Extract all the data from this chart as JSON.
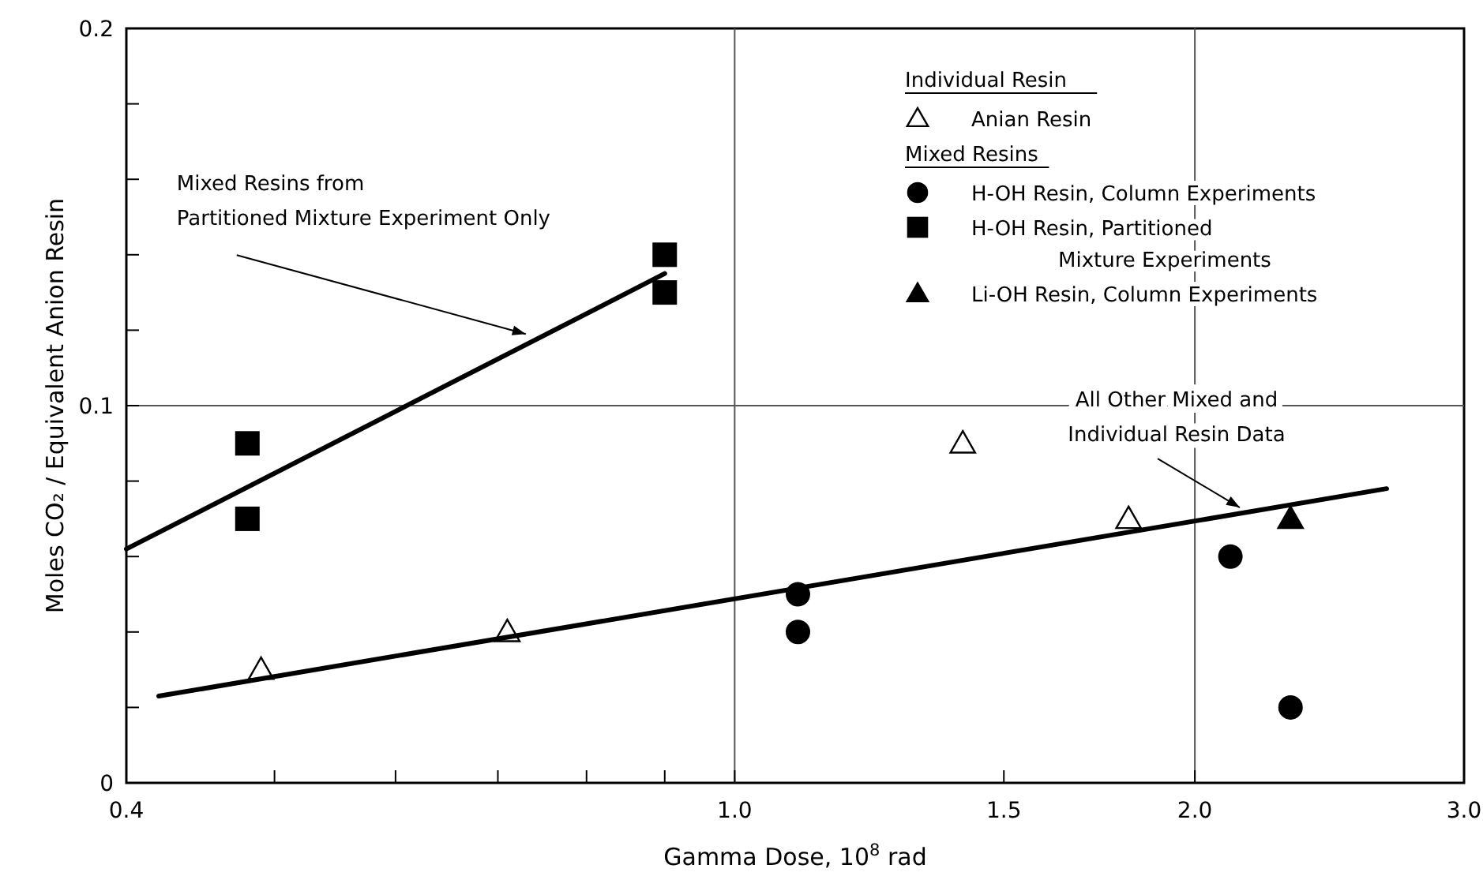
{
  "chart_data": {
    "type": "scatter",
    "xlabel": "Gamma Dose, 10$^{8}$ rad",
    "ylabel": "Moles CO₂ / Equivalent Anion Resin",
    "log": "x",
    "xlim": [
      0.4,
      3.0
    ],
    "xticks": [
      0.4,
      {
        "value": 0.5,
        "label": null
      },
      {
        "value": 0.6,
        "label": null
      },
      {
        "value": 0.7,
        "label": null
      },
      {
        "value": 0.8,
        "label": null
      },
      {
        "value": 0.9,
        "label": null
      },
      {
        "value": 1,
        "label": "1.0"
      },
      1.5,
      {
        "value": 2,
        "label": "2.0"
      },
      {
        "value": 3,
        "label": "3.0"
      }
    ],
    "ylim": [
      0,
      0.2
    ],
    "yticks": [
      0,
      {
        "value": 0.02,
        "label": null
      },
      {
        "value": 0.04,
        "label": null
      },
      {
        "value": 0.06,
        "label": null
      },
      {
        "value": 0.08,
        "label": null
      },
      0.1,
      {
        "value": 0.12,
        "label": null
      },
      {
        "value": 0.14,
        "label": null
      },
      {
        "value": 0.16,
        "label": null
      },
      {
        "value": 0.18,
        "label": null
      },
      0.2
    ],
    "ref_lines": [
      {
        "axis": "x",
        "value": 1
      },
      {
        "axis": "x",
        "value": 2
      },
      {
        "axis": "y",
        "value": 0.1
      }
    ],
    "legend": "top right",
    "legend_title": "Individual Resin",
    "series": [
      {
        "name": "Anian Resin",
        "marker": "triangle",
        "color": "#ffffff",
        "x": [
          0.49,
          0.71,
          1.41,
          1.81
        ],
        "values": [
          0.03,
          0.04,
          0.09,
          0.07
        ]
      },
      {
        "name": "H-OH Resin, Column Experiments",
        "marker": "circle",
        "color": "#000000",
        "x": [
          1.1,
          1.1,
          2.11,
          2.31
        ],
        "values": [
          0.05,
          0.04,
          0.06,
          0.02
        ]
      },
      {
        "name": "H-OH Resin, Partitioned Mixture Experiments",
        "marker": "square",
        "color": "#000000",
        "x": [
          0.48,
          0.48,
          0.9,
          0.9
        ],
        "values": [
          0.09,
          0.07,
          0.14,
          0.13
        ]
      },
      {
        "name": "Li-OH Resin, Column Experiments",
        "marker": "triangle",
        "color": "#000000",
        "x": [
          2.31
        ],
        "values": [
          0.07
        ]
      },
      {
        "type": "line",
        "color": "#000000",
        "x": [
          0.4,
          0.9
        ],
        "values": [
          0.062,
          0.135
        ]
      },
      {
        "type": "line",
        "color": "#000000",
        "x": [
          0.42,
          2.67
        ],
        "values": [
          0.023,
          0.078
        ]
      }
    ],
    "annotations": [
      "Mixed Resins",
      {
        "text": "Mixed Resins from\nPartitioned Mixture Experiment Only",
        "x": 0.73,
        "y": 0.119
      },
      {
        "text": "All Other Mixed and\nIndividual Resin Data",
        "x": 2.14,
        "y": 0.073
      }
    ]
  }
}
